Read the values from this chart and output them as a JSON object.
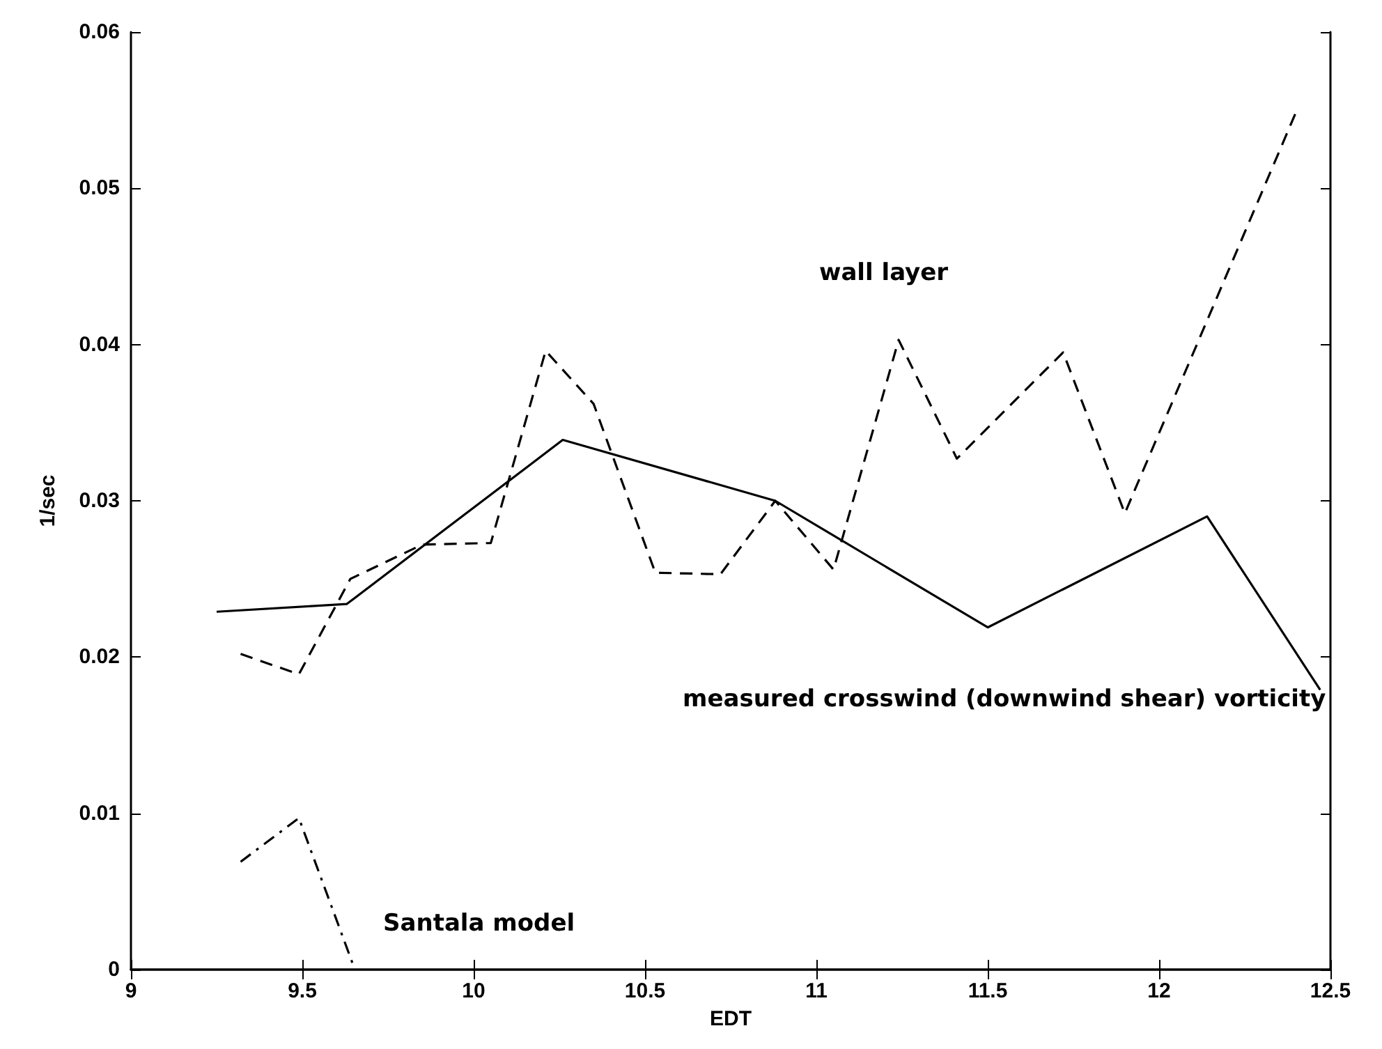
{
  "chart_data": {
    "type": "line",
    "xlabel": "EDT",
    "ylabel": "1/sec",
    "xlim": [
      9,
      12.5
    ],
    "xticks": [
      9,
      9.5,
      10,
      10.5,
      11,
      11.5,
      12,
      12.5
    ],
    "ylim": [
      0,
      0.06
    ],
    "yticks": [
      0,
      0.01,
      0.02,
      0.03,
      0.04,
      0.05,
      0.06
    ],
    "grid": false,
    "legend": false,
    "marker": "none",
    "series": [
      {
        "name": "measured crosswind (downwind shear) vorticity",
        "color": "#000000",
        "line_style": "solid",
        "x": [
          9.25,
          9.63,
          10.26,
          10.88,
          11.5,
          12.14,
          12.47
        ],
        "values": [
          0.0229,
          0.0234,
          0.0339,
          0.03,
          0.0219,
          0.029,
          0.0179
        ]
      },
      {
        "name": "wall layer",
        "color": "#000000",
        "line_style": "dashed",
        "x": [
          9.32,
          9.49,
          9.64,
          9.85,
          10.05,
          10.21,
          10.35,
          10.53,
          10.72,
          10.88,
          11.05,
          11.24,
          11.41,
          11.72,
          11.9,
          12.4
        ],
        "values": [
          0.0202,
          0.0189,
          0.025,
          0.0272,
          0.0273,
          0.0396,
          0.0362,
          0.0254,
          0.0253,
          0.03,
          0.0256,
          0.0403,
          0.0327,
          0.0395,
          0.0292,
          0.0549
        ]
      },
      {
        "name": "Santala model",
        "color": "#000000",
        "line_style": "dashdot",
        "x": [
          9.32,
          9.49,
          9.65
        ],
        "values": [
          0.0069,
          0.0097,
          0.0002
        ]
      }
    ]
  }
}
